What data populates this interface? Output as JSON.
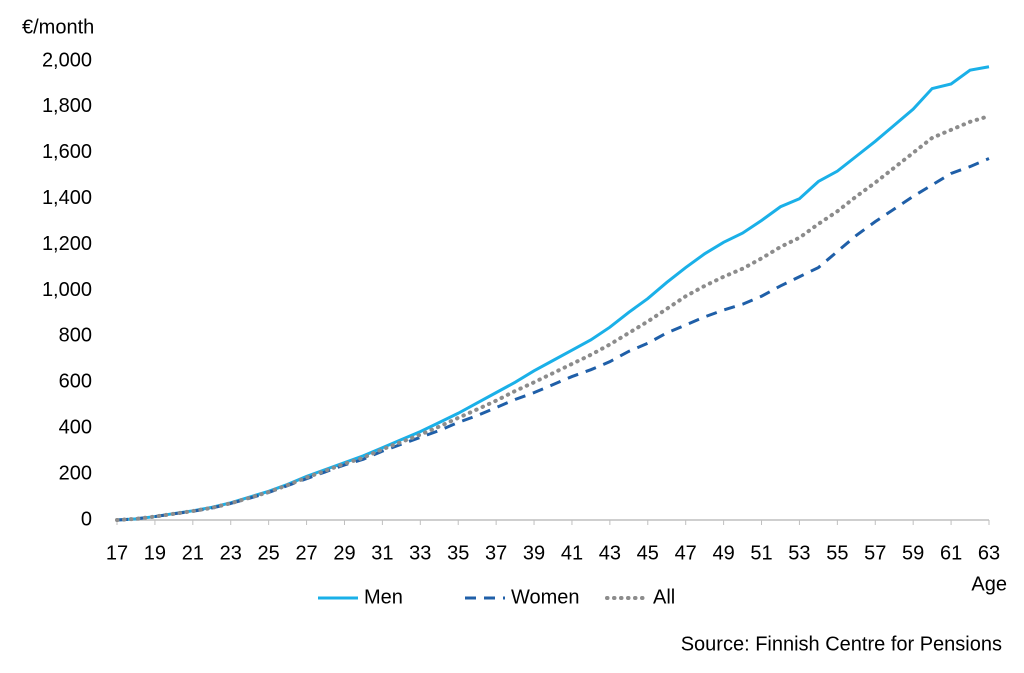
{
  "chart_data": {
    "type": "line",
    "y_label": "€/month",
    "x_label": "Age",
    "source": "Source: Finnish Centre for Pensions",
    "x": [
      17,
      18,
      19,
      20,
      21,
      22,
      23,
      24,
      25,
      26,
      27,
      28,
      29,
      30,
      31,
      32,
      33,
      34,
      35,
      36,
      37,
      38,
      39,
      40,
      41,
      42,
      43,
      44,
      45,
      46,
      47,
      48,
      49,
      50,
      51,
      52,
      53,
      54,
      55,
      56,
      57,
      58,
      59,
      60,
      61,
      62,
      63
    ],
    "xlim": [
      17,
      63
    ],
    "xticks": [
      17,
      19,
      21,
      23,
      25,
      27,
      29,
      31,
      33,
      35,
      37,
      39,
      41,
      43,
      45,
      47,
      49,
      51,
      53,
      55,
      57,
      59,
      61,
      63
    ],
    "ylim": [
      0,
      2000
    ],
    "yticks": [
      0,
      200,
      400,
      600,
      800,
      {
        "value": 1000,
        "label": "1,000"
      },
      {
        "value": 1200,
        "label": "1,200"
      },
      {
        "value": 1400,
        "label": "1,400"
      },
      {
        "value": 1600,
        "label": "1,600"
      },
      {
        "value": 1800,
        "label": "1,800"
      },
      {
        "value": 2000,
        "label": "2,000"
      }
    ],
    "grid": false,
    "legend": "bottom",
    "series": [
      {
        "name": "Men",
        "color": "#1ab0e8",
        "dash": "solid",
        "values": [
          0,
          5,
          15,
          28,
          40,
          55,
          75,
          100,
          125,
          155,
          190,
          220,
          250,
          280,
          315,
          350,
          385,
          425,
          465,
          510,
          555,
          600,
          650,
          695,
          740,
          785,
          840,
          905,
          965,
          1035,
          1100,
          1160,
          1210,
          1250,
          1305,
          1365,
          1400,
          1475,
          1520,
          1585,
          1650,
          1720,
          1790,
          1880,
          1900,
          1960,
          1975
        ]
      },
      {
        "name": "Women",
        "color": "#1f5fa8",
        "dash": "dashed",
        "values": [
          0,
          5,
          15,
          27,
          38,
          52,
          72,
          95,
          120,
          150,
          180,
          210,
          240,
          265,
          300,
          330,
          360,
          390,
          425,
          455,
          490,
          525,
          555,
          590,
          625,
          655,
          690,
          735,
          770,
          815,
          850,
          885,
          915,
          940,
          975,
          1020,
          1060,
          1100,
          1170,
          1240,
          1300,
          1355,
          1410,
          1460,
          1510,
          1540,
          1575
        ]
      },
      {
        "name": "All",
        "color": "#8c8c8c",
        "dash": "dotted",
        "values": [
          0,
          5,
          15,
          27,
          39,
          53,
          73,
          97,
          122,
          152,
          185,
          215,
          245,
          272,
          308,
          340,
          372,
          407,
          445,
          482,
          520,
          562,
          600,
          640,
          680,
          720,
          765,
          815,
          865,
          920,
          975,
          1020,
          1060,
          1095,
          1140,
          1190,
          1230,
          1290,
          1345,
          1410,
          1470,
          1535,
          1600,
          1665,
          1700,
          1735,
          1760
        ]
      }
    ]
  }
}
